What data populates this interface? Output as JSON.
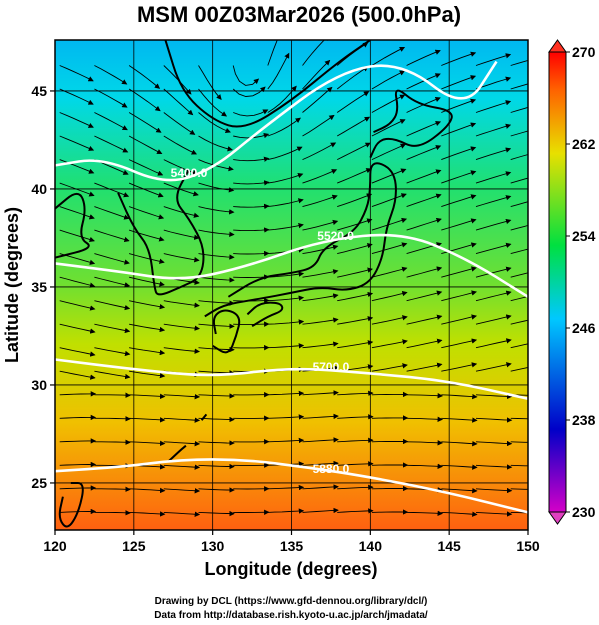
{
  "chart_data": {
    "type": "heatmap",
    "title": "MSM 00Z03Mar2026 (500.0hPa)",
    "xlabel": "Longitude (degrees)",
    "ylabel": "Latitude  (degrees)",
    "xlim": [
      120,
      150
    ],
    "ylim": [
      22.6,
      47.6
    ],
    "x_ticks": [
      120,
      125,
      130,
      135,
      140,
      145,
      150
    ],
    "y_ticks": [
      25,
      30,
      35,
      40,
      45
    ],
    "colorbar": {
      "min": 230,
      "max": 270,
      "ticks": [
        230,
        238,
        246,
        254,
        262,
        270
      ],
      "colors": [
        "#d400c8",
        "#0000c8",
        "#00c8ff",
        "#00e040",
        "#e8e000",
        "#ff6000",
        "#ff0000"
      ]
    },
    "contours": [
      {
        "label": "5400.0",
        "points": [
          [
            120,
            41.2
          ],
          [
            123,
            41.6
          ],
          [
            127,
            40.2
          ],
          [
            130,
            41
          ],
          [
            133,
            43
          ],
          [
            138,
            46
          ],
          [
            142,
            46.5
          ],
          [
            146,
            44
          ],
          [
            148,
            46.5
          ]
        ]
      },
      {
        "label": "5520.0",
        "points": [
          [
            120,
            36.2
          ],
          [
            124,
            35.8
          ],
          [
            128,
            35.3
          ],
          [
            132,
            36
          ],
          [
            137,
            37.4
          ],
          [
            142,
            37.8
          ],
          [
            146,
            36.5
          ],
          [
            150,
            34.5
          ]
        ]
      },
      {
        "label": "5700.0",
        "points": [
          [
            120,
            31.3
          ],
          [
            125,
            30.8
          ],
          [
            130,
            30.4
          ],
          [
            135,
            30.9
          ],
          [
            140,
            30.6
          ],
          [
            145,
            30.2
          ],
          [
            150,
            29.3
          ]
        ]
      },
      {
        "label": "5880.0",
        "points": [
          [
            120,
            25.6
          ],
          [
            124,
            25.8
          ],
          [
            128,
            26.2
          ],
          [
            132,
            26.2
          ],
          [
            136,
            25.8
          ],
          [
            140,
            25.3
          ],
          [
            145,
            24.5
          ],
          [
            150,
            23.5
          ]
        ]
      }
    ],
    "contour_label_positions": [
      {
        "label": "5400.0",
        "x": 128.5,
        "y": 40.6
      },
      {
        "label": "5520.0",
        "x": 137.8,
        "y": 37.4
      },
      {
        "label": "5700.0",
        "x": 137.5,
        "y": 30.7
      },
      {
        "label": "5880.0",
        "x": 137.5,
        "y": 25.5
      }
    ],
    "credits": [
      "Drawing by DCL (https://www.gfd-dennou.org/library/dcl/)",
      "Data from http://database.rish.kyoto-u.ac.jp/arch/jmadata/"
    ]
  }
}
